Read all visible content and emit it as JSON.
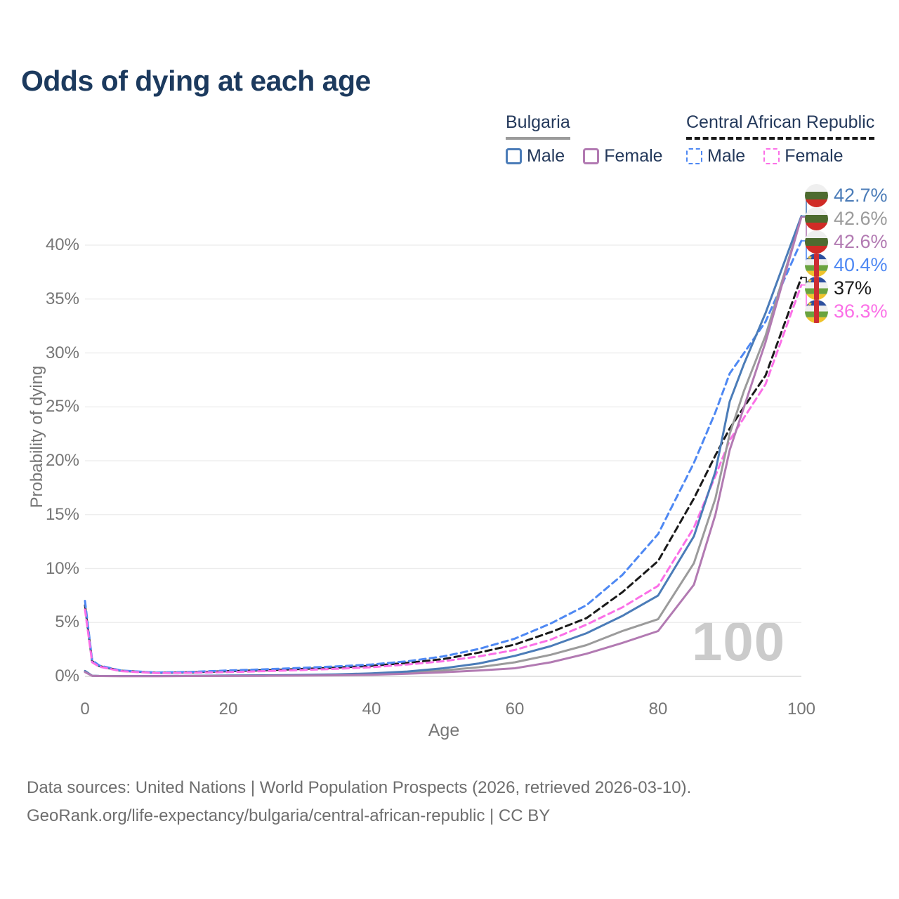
{
  "title": "Odds of dying at each age",
  "legend": {
    "groups": [
      {
        "name": "Bulgaria",
        "line_style": "solid",
        "underline_color": "#9b9b9b",
        "items": [
          {
            "label": "Male",
            "color": "#4b7cb8"
          },
          {
            "label": "Female",
            "color": "#b27ab2"
          }
        ]
      },
      {
        "name": "Central African Republic",
        "line_style": "dashed",
        "underline_color": "#1a1a1a",
        "items": [
          {
            "label": "Male",
            "color": "#4e88f3"
          },
          {
            "label": "Female",
            "color": "#fb70e7"
          }
        ]
      }
    ]
  },
  "watermark": "100",
  "end_labels": [
    {
      "series": "Bulgaria — Male",
      "flag": "bulgaria",
      "value": "42.7%",
      "color": "#4b7cb8"
    },
    {
      "series": "Bulgaria — Total",
      "flag": "bulgaria",
      "value": "42.6%",
      "color": "#9b9b9b"
    },
    {
      "series": "Bulgaria — Female",
      "flag": "bulgaria",
      "value": "42.6%",
      "color": "#b27ab2"
    },
    {
      "series": "Central African Republic — Male",
      "flag": "central-african-republic",
      "value": "40.4%",
      "color": "#4e88f3"
    },
    {
      "series": "Central African Republic — Total",
      "flag": "central-african-republic",
      "value": "37%",
      "color": "#1a1a1a"
    },
    {
      "series": "Central African Republic — Female",
      "flag": "central-african-republic",
      "value": "36.3%",
      "color": "#fb70e7"
    }
  ],
  "footer": {
    "line1": "Data sources: United Nations | World Population Prospects (2026, retrieved 2026-03-10).",
    "line2": "GeoRank.org/life-expectancy/bulgaria/central-african-republic | CC BY"
  },
  "chart_data": {
    "type": "line",
    "title": "Odds of dying at each age",
    "xlabel": "Age",
    "ylabel": "Probability of dying",
    "xlim": [
      0,
      100
    ],
    "ylim": [
      0,
      40
    ],
    "xticks": [
      0,
      20,
      40,
      60,
      80,
      100
    ],
    "yticks": [
      0,
      5,
      10,
      15,
      20,
      25,
      30,
      35,
      40
    ],
    "ytick_suffix": "%",
    "grid": "horizontal",
    "legend_position": "top-right",
    "x": [
      0,
      1,
      2,
      5,
      10,
      15,
      20,
      25,
      30,
      35,
      40,
      45,
      50,
      55,
      60,
      65,
      70,
      75,
      80,
      85,
      88,
      90,
      92,
      95,
      100
    ],
    "series": [
      {
        "name": "Central African Republic — Total",
        "country": "Central African Republic",
        "sex": "Total",
        "color": "#1a1a1a",
        "dash": true,
        "end_label": "37%",
        "values": [
          6.6,
          1.4,
          0.95,
          0.52,
          0.33,
          0.38,
          0.48,
          0.57,
          0.68,
          0.81,
          0.98,
          1.25,
          1.6,
          2.2,
          2.95,
          4.1,
          5.4,
          7.8,
          10.7,
          16.5,
          20.5,
          23.0,
          25.0,
          27.9,
          37.0
        ]
      },
      {
        "name": "Central African Republic — Male",
        "country": "Central African Republic",
        "sex": "Male",
        "color": "#4e88f3",
        "dash": true,
        "end_label": "40.4%",
        "values": [
          7.0,
          1.5,
          1.0,
          0.55,
          0.35,
          0.42,
          0.55,
          0.65,
          0.78,
          0.92,
          1.1,
          1.4,
          1.85,
          2.55,
          3.5,
          4.9,
          6.6,
          9.4,
          13.2,
          19.8,
          24.5,
          28.1,
          30.0,
          32.9,
          40.4
        ]
      },
      {
        "name": "Central African Republic — Female",
        "country": "Central African Republic",
        "sex": "Female",
        "color": "#fb70e7",
        "dash": true,
        "end_label": "36.3%",
        "values": [
          6.2,
          1.3,
          0.9,
          0.48,
          0.3,
          0.33,
          0.4,
          0.48,
          0.58,
          0.7,
          0.85,
          1.1,
          1.4,
          1.85,
          2.45,
          3.4,
          4.8,
          6.4,
          8.4,
          13.8,
          18.6,
          21.9,
          24.0,
          27.1,
          36.3
        ]
      },
      {
        "name": "Bulgaria — Total",
        "country": "Bulgaria",
        "sex": "Total",
        "color": "#9b9b9b",
        "dash": false,
        "end_label": "42.6%",
        "values": [
          0.45,
          0.055,
          0.035,
          0.025,
          0.025,
          0.04,
          0.06,
          0.08,
          0.1,
          0.14,
          0.21,
          0.35,
          0.55,
          0.85,
          1.3,
          2.0,
          2.9,
          4.2,
          5.3,
          10.5,
          16.5,
          22.5,
          26.5,
          31.6,
          42.6
        ]
      },
      {
        "name": "Bulgaria — Male",
        "country": "Bulgaria",
        "sex": "Male",
        "color": "#4b7cb8",
        "dash": false,
        "end_label": "42.7%",
        "values": [
          0.5,
          0.06,
          0.04,
          0.03,
          0.03,
          0.05,
          0.08,
          0.1,
          0.13,
          0.18,
          0.28,
          0.45,
          0.75,
          1.2,
          1.9,
          2.8,
          4.0,
          5.6,
          7.5,
          13.0,
          19.0,
          25.5,
          29.0,
          33.7,
          42.7
        ]
      },
      {
        "name": "Bulgaria — Female",
        "country": "Bulgaria",
        "sex": "Female",
        "color": "#b27ab2",
        "dash": false,
        "end_label": "42.6%",
        "values": [
          0.4,
          0.05,
          0.03,
          0.02,
          0.02,
          0.03,
          0.04,
          0.05,
          0.07,
          0.1,
          0.15,
          0.24,
          0.38,
          0.55,
          0.75,
          1.3,
          2.1,
          3.1,
          4.2,
          8.5,
          15.0,
          21.0,
          25.0,
          31.0,
          42.6
        ]
      }
    ]
  }
}
